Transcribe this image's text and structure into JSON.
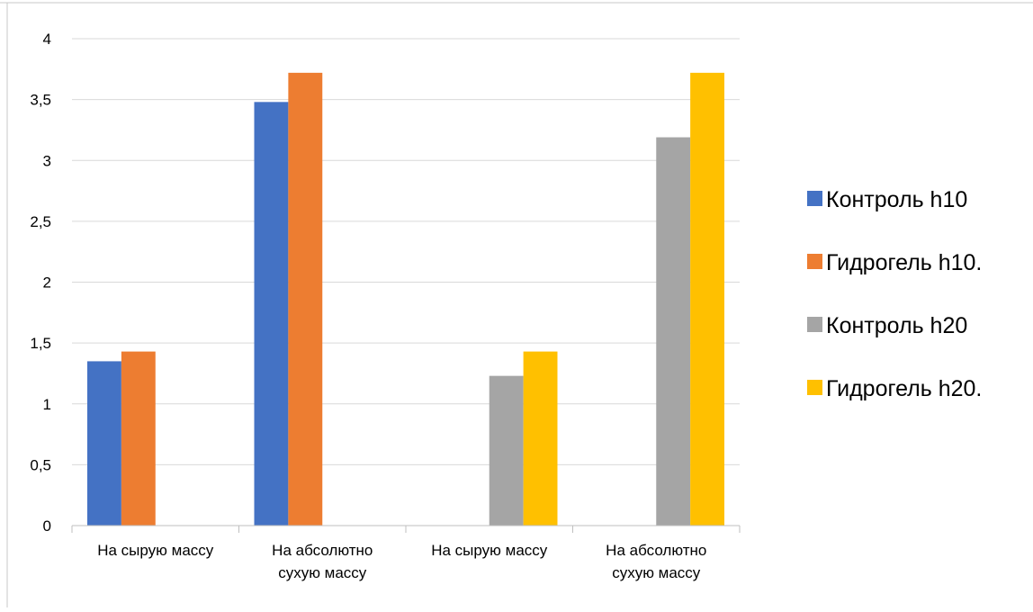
{
  "chart_data": {
    "type": "bar",
    "categories": [
      [
        "На сырую массу"
      ],
      [
        "На абсолютно",
        "сухую массу"
      ],
      [
        "На сырую массу"
      ],
      [
        "На абсолютно",
        "сухую массу"
      ]
    ],
    "series": [
      {
        "name": "Контроль h10",
        "color": "#4472C4",
        "values": [
          1.35,
          3.48,
          null,
          null
        ]
      },
      {
        "name": "Гидрогель h10.",
        "color": "#ED7D31",
        "values": [
          1.43,
          3.72,
          null,
          null
        ]
      },
      {
        "name": "Контроль h20",
        "color": "#A5A5A5",
        "values": [
          null,
          null,
          1.23,
          3.19
        ]
      },
      {
        "name": "Гидрогель h20.",
        "color": "#FFC000",
        "values": [
          null,
          null,
          1.43,
          3.72
        ]
      }
    ],
    "yticks": [
      "0",
      "0,5",
      "1",
      "1,5",
      "2",
      "2,5",
      "3",
      "3,5",
      "4"
    ],
    "ylim": [
      0,
      4
    ],
    "title": "",
    "xlabel": "",
    "ylabel": "",
    "grid": true,
    "legend_position": "right"
  }
}
